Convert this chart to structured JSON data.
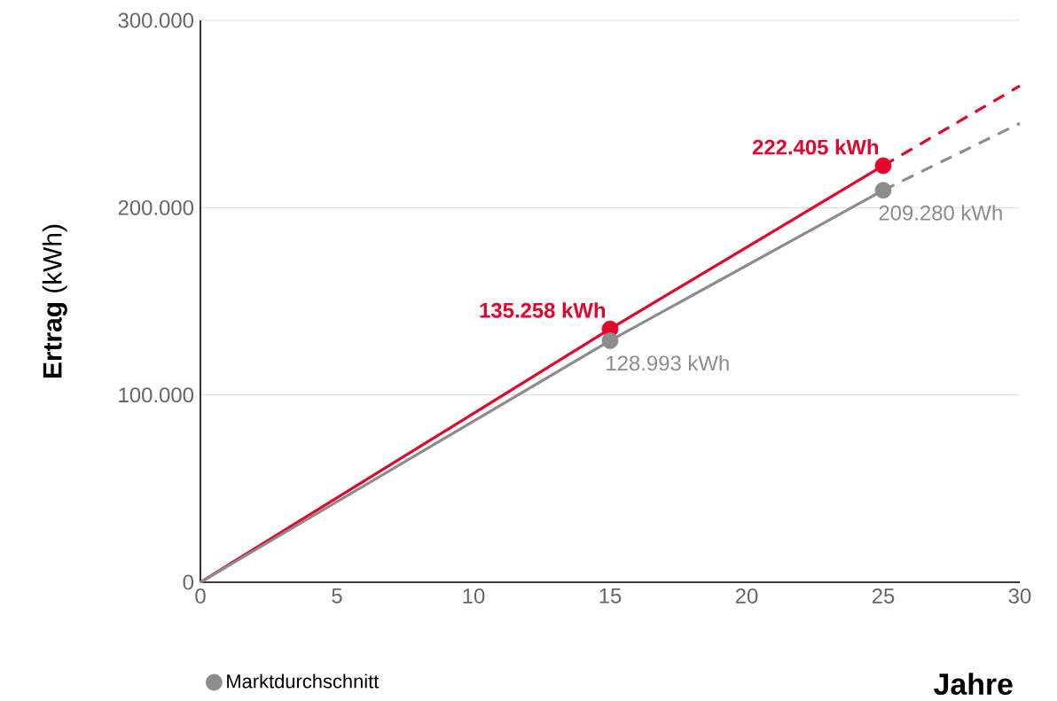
{
  "chart_data": {
    "type": "line",
    "xlabel": "Jahre",
    "ylabel": "**Ertrag** (kWh)",
    "xlim": [
      0,
      30
    ],
    "xticks": [
      0,
      5,
      10,
      15,
      20,
      25,
      30
    ],
    "ylim": [
      0,
      300000
    ],
    "yticks": [
      {
        "value": 0,
        "label": "0"
      },
      {
        "value": 100000,
        "label": "100.000"
      },
      {
        "value": 200000,
        "label": "200.000"
      },
      {
        "value": 300000,
        "label": "300.000"
      }
    ],
    "grid": "y",
    "legend": "bottom left",
    "series": [
      {
        "color": "#e2062c",
        "x": [
          0,
          15,
          25
        ],
        "values": [
          0,
          135258,
          222405
        ],
        "marker": "none",
        "line_style": "solid"
      },
      {
        "color": "#e2062c",
        "x": [
          25,
          30
        ],
        "values": [
          222405,
          265000
        ],
        "marker": "none",
        "line_style": "dashed"
      },
      {
        "color": "#8c8c8c",
        "x": [
          0,
          15,
          25
        ],
        "values": [
          0,
          128993,
          209280
        ],
        "marker": "none",
        "line_style": "solid"
      },
      {
        "color": "#8c8c8c",
        "x": [
          25,
          30
        ],
        "values": [
          209280,
          245000
        ],
        "marker": "none",
        "line_style": "dashed"
      },
      {
        "type": "scatter",
        "color": "#e2062c",
        "x": [
          15,
          25
        ],
        "values": [
          135258,
          222405
        ],
        "marker": "circle",
        "value_labels": [
          "135.258 kWh",
          "222.405 kWh"
        ]
      },
      {
        "type": "scatter",
        "name": "Marktdurchschnitt",
        "color": "#8c8c8c",
        "x": [
          15,
          25
        ],
        "values": [
          128993,
          209280
        ],
        "marker": "circle",
        "value_labels": [
          "128.993 kWh",
          "209.280 kWh"
        ]
      }
    ]
  }
}
